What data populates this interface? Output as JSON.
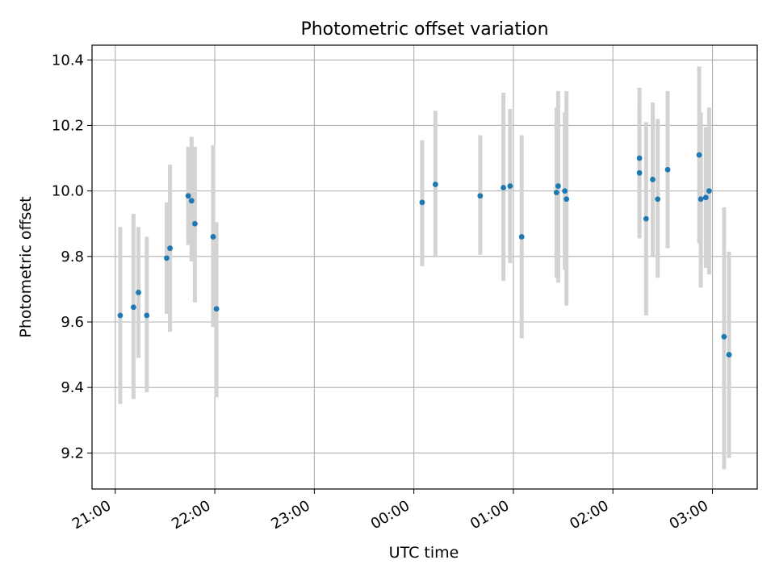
{
  "chart_data": {
    "type": "scatter",
    "title": "Photometric offset variation",
    "xlabel": "UTC time",
    "ylabel": "Photometric offset",
    "x_axis_type": "time",
    "xlim": [
      "2000-01-01T20:46",
      "2000-01-02T03:27"
    ],
    "ylim": [
      9.09,
      10.445
    ],
    "x_ticks": [
      {
        "t": "2000-01-01T21:00",
        "label": "21:00"
      },
      {
        "t": "2000-01-01T22:00",
        "label": "22:00"
      },
      {
        "t": "2000-01-01T23:00",
        "label": "23:00"
      },
      {
        "t": "2000-01-02T00:00",
        "label": "00:00"
      },
      {
        "t": "2000-01-02T01:00",
        "label": "01:00"
      },
      {
        "t": "2000-01-02T02:00",
        "label": "02:00"
      },
      {
        "t": "2000-01-02T03:00",
        "label": "03:00"
      }
    ],
    "y_ticks": [
      {
        "v": 9.2,
        "label": "9.2"
      },
      {
        "v": 9.4,
        "label": "9.4"
      },
      {
        "v": 9.6,
        "label": "9.6"
      },
      {
        "v": 9.8,
        "label": "9.8"
      },
      {
        "v": 10.0,
        "label": "10.0"
      },
      {
        "v": 10.2,
        "label": "10.2"
      },
      {
        "v": 10.4,
        "label": "10.4"
      }
    ],
    "grid": true,
    "legend": false,
    "marker_color": "#1f77b4",
    "errorbar_color": "#d3d3d3",
    "points": [
      {
        "t": "2000-01-01T21:03",
        "y": 9.62,
        "lo": 9.35,
        "hi": 9.89
      },
      {
        "t": "2000-01-01T21:11",
        "y": 9.645,
        "lo": 9.365,
        "hi": 9.93
      },
      {
        "t": "2000-01-01T21:14",
        "y": 9.69,
        "lo": 9.49,
        "hi": 9.89
      },
      {
        "t": "2000-01-01T21:19",
        "y": 9.62,
        "lo": 9.385,
        "hi": 9.86
      },
      {
        "t": "2000-01-01T21:31",
        "y": 9.795,
        "lo": 9.625,
        "hi": 9.965
      },
      {
        "t": "2000-01-01T21:33",
        "y": 9.825,
        "lo": 9.57,
        "hi": 10.08
      },
      {
        "t": "2000-01-01T21:44",
        "y": 9.985,
        "lo": 9.835,
        "hi": 10.135
      },
      {
        "t": "2000-01-01T21:46",
        "y": 9.97,
        "lo": 9.785,
        "hi": 10.165
      },
      {
        "t": "2000-01-01T21:48",
        "y": 9.9,
        "lo": 9.66,
        "hi": 10.135
      },
      {
        "t": "2000-01-01T21:59",
        "y": 9.86,
        "lo": 9.585,
        "hi": 10.14
      },
      {
        "t": "2000-01-01T22:01",
        "y": 9.64,
        "lo": 9.37,
        "hi": 9.905
      },
      {
        "t": "2000-01-02T00:05",
        "y": 9.965,
        "lo": 9.77,
        "hi": 10.155
      },
      {
        "t": "2000-01-02T00:13",
        "y": 10.02,
        "lo": 9.8,
        "hi": 10.245
      },
      {
        "t": "2000-01-02T00:40",
        "y": 9.985,
        "lo": 9.805,
        "hi": 10.17
      },
      {
        "t": "2000-01-02T00:54",
        "y": 10.01,
        "lo": 9.725,
        "hi": 10.3
      },
      {
        "t": "2000-01-02T00:58",
        "y": 10.015,
        "lo": 9.78,
        "hi": 10.25
      },
      {
        "t": "2000-01-02T01:05",
        "y": 9.86,
        "lo": 9.55,
        "hi": 10.17
      },
      {
        "t": "2000-01-02T01:26",
        "y": 9.995,
        "lo": 9.735,
        "hi": 10.255
      },
      {
        "t": "2000-01-02T01:27",
        "y": 10.015,
        "lo": 9.72,
        "hi": 10.305
      },
      {
        "t": "2000-01-02T01:31",
        "y": 10.0,
        "lo": 9.76,
        "hi": 10.24
      },
      {
        "t": "2000-01-02T01:32",
        "y": 9.975,
        "lo": 9.65,
        "hi": 10.305
      },
      {
        "t": "2000-01-02T02:16",
        "y": 10.1,
        "lo": 9.87,
        "hi": 10.315
      },
      {
        "t": "2000-01-02T02:16",
        "y": 10.055,
        "lo": 9.855,
        "hi": 10.26
      },
      {
        "t": "2000-01-02T02:20",
        "y": 9.915,
        "lo": 9.62,
        "hi": 10.21
      },
      {
        "t": "2000-01-02T02:24",
        "y": 10.035,
        "lo": 9.8,
        "hi": 10.27
      },
      {
        "t": "2000-01-02T02:27",
        "y": 9.975,
        "lo": 9.735,
        "hi": 10.22
      },
      {
        "t": "2000-01-02T02:33",
        "y": 10.065,
        "lo": 9.825,
        "hi": 10.305
      },
      {
        "t": "2000-01-02T02:52",
        "y": 10.11,
        "lo": 9.84,
        "hi": 10.38
      },
      {
        "t": "2000-01-02T02:53",
        "y": 9.975,
        "lo": 9.705,
        "hi": 10.24
      },
      {
        "t": "2000-01-02T02:56",
        "y": 9.98,
        "lo": 9.765,
        "hi": 10.195
      },
      {
        "t": "2000-01-02T02:58",
        "y": 10.0,
        "lo": 9.745,
        "hi": 10.255
      },
      {
        "t": "2000-01-02T03:07",
        "y": 9.555,
        "lo": 9.15,
        "hi": 9.95
      },
      {
        "t": "2000-01-02T03:10",
        "y": 9.5,
        "lo": 9.185,
        "hi": 9.815
      }
    ]
  }
}
